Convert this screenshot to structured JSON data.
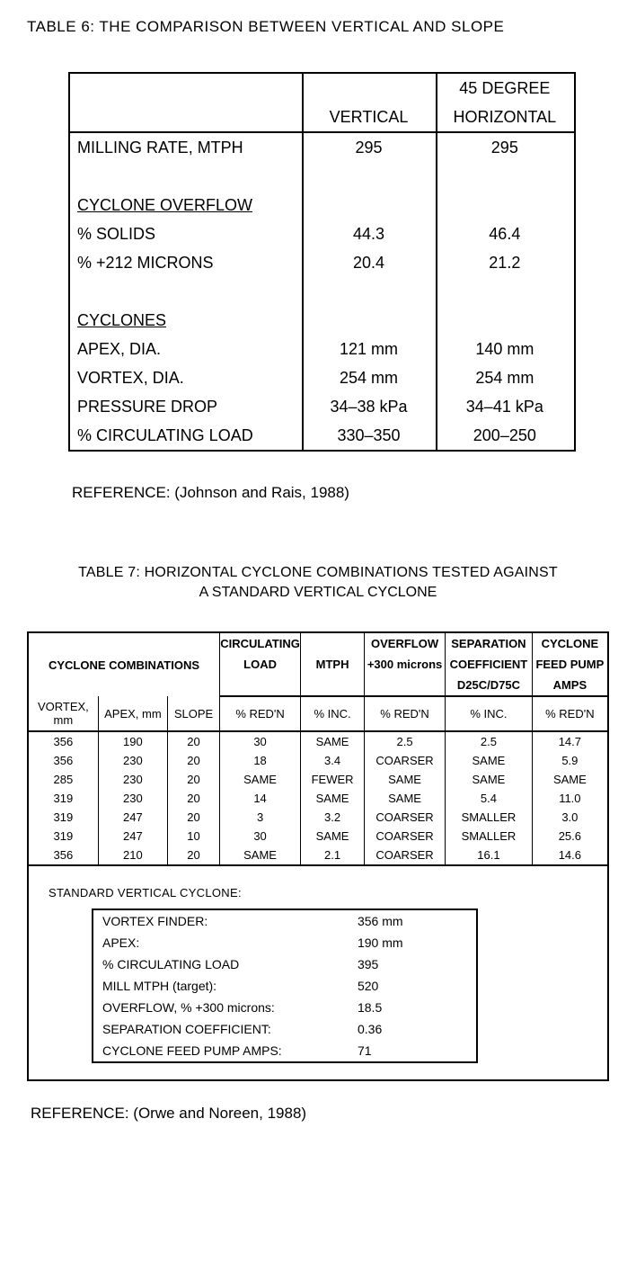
{
  "table6": {
    "title": "TABLE 6: THE COMPARISON BETWEEN VERTICAL AND SLOPE",
    "col1": "VERTICAL",
    "col2_top": "45 DEGREE",
    "col2_bot": "HORIZONTAL",
    "rows": {
      "milling_rate": {
        "label": "MILLING RATE, MTPH",
        "v": "295",
        "h": "295"
      },
      "sect_overflow": {
        "label": "CYCLONE OVERFLOW"
      },
      "pct_solids": {
        "label": "% SOLIDS",
        "v": "44.3",
        "h": "46.4"
      },
      "pct_212": {
        "label": "% +212 MICRONS",
        "v": "20.4",
        "h": "21.2"
      },
      "sect_cyclones": {
        "label": "CYCLONES"
      },
      "apex": {
        "label": "APEX, DIA.",
        "v": "121 mm",
        "h": "140 mm"
      },
      "vortex": {
        "label": "VORTEX, DIA.",
        "v": "254 mm",
        "h": "254 mm"
      },
      "pdrop": {
        "label": "PRESSURE DROP",
        "v": "34–38 kPa",
        "h": "34–41 kPa"
      },
      "circ": {
        "label": "% CIRCULATING LOAD",
        "v": "330–350",
        "h": "200–250"
      }
    },
    "reference": "REFERENCE:  (Johnson and Rais, 1988)"
  },
  "table7": {
    "title_line1": "TABLE 7:  HORIZONTAL CYCLONE COMBINATIONS TESTED AGAINST",
    "title_line2": "A STANDARD VERTICAL CYCLONE",
    "head": {
      "combo": "CYCLONE COMBINATIONS",
      "circ_top": "CIRCULATING",
      "circ_bot": "LOAD",
      "mtph": "MTPH",
      "ovf_top": "OVERFLOW",
      "ovf_bot": "+300 microns",
      "sep_top": "SEPARATION",
      "sep_mid": "COEFFICIENT",
      "sep_bot": "D25C/D75C",
      "pump_top": "CYCLONE",
      "pump_mid": "FEED PUMP",
      "pump_bot": "AMPS"
    },
    "sub": {
      "vortex": "VORTEX, mm",
      "apex": "APEX, mm",
      "slope": "SLOPE",
      "circ": "% RED'N",
      "mtph": "% INC.",
      "ovf": "% RED'N",
      "sep": "% INC.",
      "pump": "% RED'N"
    },
    "rows": [
      {
        "vx": "356",
        "ap": "190",
        "sl": "20",
        "circ": "30",
        "mtph": "SAME",
        "ovf": "2.5",
        "sep": "2.5",
        "pump": "14.7"
      },
      {
        "vx": "356",
        "ap": "230",
        "sl": "20",
        "circ": "18",
        "mtph": "3.4",
        "ovf": "COARSER",
        "sep": "SAME",
        "pump": "5.9"
      },
      {
        "vx": "285",
        "ap": "230",
        "sl": "20",
        "circ": "SAME",
        "mtph": "FEWER",
        "ovf": "SAME",
        "sep": "SAME",
        "pump": "SAME"
      },
      {
        "vx": "319",
        "ap": "230",
        "sl": "20",
        "circ": "14",
        "mtph": "SAME",
        "ovf": "SAME",
        "sep": "5.4",
        "pump": "11.0"
      },
      {
        "vx": "319",
        "ap": "247",
        "sl": "20",
        "circ": "3",
        "mtph": "3.2",
        "ovf": "COARSER",
        "sep": "SMALLER",
        "pump": "3.0"
      },
      {
        "vx": "319",
        "ap": "247",
        "sl": "10",
        "circ": "30",
        "mtph": "SAME",
        "ovf": "COARSER",
        "sep": "SMALLER",
        "pump": "25.6"
      },
      {
        "vx": "356",
        "ap": "210",
        "sl": "20",
        "circ": "SAME",
        "mtph": "2.1",
        "ovf": "COARSER",
        "sep": "16.1",
        "pump": "14.6"
      }
    ],
    "std_label": "STANDARD VERTICAL CYCLONE:",
    "std": [
      {
        "k": "VORTEX FINDER:",
        "v": "356 mm"
      },
      {
        "k": "APEX:",
        "v": "190 mm"
      },
      {
        "k": "% CIRCULATING LOAD",
        "v": "395"
      },
      {
        "k": "MILL MTPH (target):",
        "v": "520"
      },
      {
        "k": "OVERFLOW, % +300 microns:",
        "v": "18.5"
      },
      {
        "k": "SEPARATION COEFFICIENT:",
        "v": "0.36"
      },
      {
        "k": "CYCLONE FEED PUMP AMPS:",
        "v": "71"
      }
    ],
    "reference": "REFERENCE:  (Orwe and Noreen, 1988)"
  }
}
